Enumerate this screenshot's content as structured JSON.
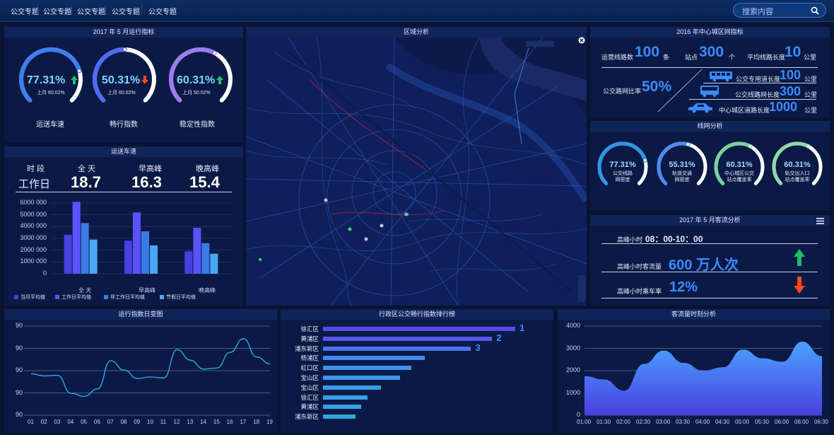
{
  "nav": {
    "items": [
      "公交专题",
      "公交专题",
      "公交专题",
      "公交专题",
      "公交专题"
    ]
  },
  "search": {
    "placeholder": "搜索内容"
  },
  "panel_ops": {
    "title": "2017 年 5 月运行指标",
    "gauges": [
      {
        "value": "77.31%",
        "trend": "up",
        "prev": "上月 60.02%",
        "label": "运送车速",
        "pct": 0.7731
      },
      {
        "value": "50.31%",
        "trend": "down",
        "prev": "上月 60.02%",
        "label": "畅行指数",
        "pct": 0.5031
      },
      {
        "value": "60.31%",
        "trend": "up",
        "prev": "上月 50.02%",
        "label": "稳定性指数",
        "pct": 0.6031
      }
    ]
  },
  "panel_speed": {
    "title": "运送车速",
    "col_headers": [
      "时  段",
      "全  天",
      "早高峰",
      "晚高峰"
    ],
    "row_label": "工作日",
    "row_values": [
      "18.7",
      "16.3",
      "15.4"
    ],
    "y_ticks": [
      "6000 000",
      "5000 000",
      "4000 000",
      "3000 000",
      "2000 000",
      "1000 000",
      "0"
    ],
    "legend": [
      "当月平均值",
      "工作日平均值",
      "非工作日平均值",
      "节假日平均值"
    ]
  },
  "chart_data": [
    {
      "type": "bar",
      "title": "运送车速",
      "categories": [
        "全  天",
        "早高峰",
        "晚高峰"
      ],
      "series": [
        {
          "name": "当月平均值",
          "values": [
            3300000,
            2800000,
            1900000
          ]
        },
        {
          "name": "工作日平均值",
          "values": [
            6100000,
            5200000,
            3900000
          ]
        },
        {
          "name": "非工作日平均值",
          "values": [
            4300000,
            3600000,
            2600000
          ]
        },
        {
          "name": "节假日平均值",
          "values": [
            2900000,
            2400000,
            1700000
          ]
        }
      ],
      "ylim": [
        0,
        6500000
      ],
      "colors": [
        "#4a3fe0",
        "#5a52ff",
        "#3b7be8",
        "#49a8f5"
      ]
    },
    {
      "type": "line",
      "title": "运行指数日变图",
      "categories": [
        "01",
        "02",
        "03",
        "04",
        "05",
        "06",
        "07",
        "08",
        "09",
        "10",
        "11",
        "12",
        "13",
        "14",
        "15",
        "16",
        "17",
        "18",
        "19"
      ],
      "values": [
        85.9,
        85.5,
        85.6,
        82.2,
        81.6,
        83.0,
        88.4,
        86.6,
        85.0,
        85.3,
        85.1,
        90.5,
        88.5,
        86.8,
        87.0,
        90.0,
        92.6,
        89.1,
        87.8
      ],
      "y_tick_labels": [
        "90",
        "90",
        "90",
        "90",
        "90"
      ],
      "ylim": [
        78,
        95
      ]
    },
    {
      "type": "bar",
      "title": "行政区公交畅行指数排行榜",
      "orientation": "horizontal",
      "categories": [
        "徐汇区",
        "黄浦区",
        "浦东新区",
        "杨浦区",
        "虹口区",
        "宝山区",
        "宝山区",
        "徐汇区",
        "黄浦区",
        "浦东新区"
      ],
      "values": [
        100,
        88,
        77,
        53,
        46,
        40,
        30,
        23,
        20,
        17
      ],
      "ranks": [
        "1",
        "2",
        "3"
      ]
    },
    {
      "type": "area",
      "title": "客流量时刻分析",
      "categories": [
        "01:00",
        "01:30",
        "02:00",
        "02:30",
        "03:00",
        "03:30",
        "04:00",
        "04:30",
        "05:00",
        "05:30",
        "06:00",
        "06:00",
        "06:30"
      ],
      "values": [
        1750,
        1600,
        1100,
        2300,
        2900,
        2350,
        2000,
        2150,
        2950,
        2550,
        2400,
        3300,
        2650
      ],
      "ylim": [
        0,
        4000
      ],
      "y_ticks": [
        "4000",
        "3000",
        "2000",
        "1000",
        "0"
      ]
    }
  ],
  "panel_map": {
    "title": "区域分析"
  },
  "panel_network": {
    "title": "2016 年中心城区网指标",
    "items": [
      {
        "label": "运营线路数",
        "value": "100",
        "unit": "条"
      },
      {
        "label": "站点",
        "value": "300",
        "unit": "个"
      },
      {
        "label": "平均线路长度",
        "value": "10",
        "unit": "公里"
      }
    ],
    "ratio_label": "公交路网比率",
    "ratio_value": "50%",
    "lengths": [
      {
        "label": "公交专用道长度",
        "value": "100",
        "unit": "公里",
        "icon": "bus-icon"
      },
      {
        "label": "公交线路网长度",
        "value": "300",
        "unit": "公里",
        "icon": "bus-icon"
      },
      {
        "label": "中心城区道路长度",
        "value": "1000",
        "unit": "公里",
        "icon": "car-icon"
      }
    ]
  },
  "panel_lines": {
    "title": "线网分析",
    "gauges": [
      {
        "value": "77.31%",
        "label1": "公交线路",
        "label2": "网密度",
        "pct": 0.7731
      },
      {
        "value": "55.31%",
        "label1": "轨道交通",
        "label2": "网密度",
        "pct": 0.5531
      },
      {
        "value": "60.31%",
        "label1": "中心城区公交",
        "label2": "站点覆盖率",
        "pct": 0.6031
      },
      {
        "value": "60.31%",
        "label1": "轨交出入口",
        "label2": "站点覆盖率",
        "pct": 0.6031
      }
    ]
  },
  "panel_flow": {
    "title": "2017 年 5 月客流分析",
    "peak_hour_label": "高峰小时",
    "peak_hour_value": "08：00-10：00",
    "peak_flow_label": "高峰小时客流量",
    "peak_flow_value": "600 万人次",
    "peak_rate_label": "高峰小时乘车率",
    "peak_rate_value": "12%"
  },
  "panel_daily": {
    "title": "运行指数日变图"
  },
  "panel_rank": {
    "title": "行政区公交畅行指数排行榜"
  },
  "panel_hourly": {
    "title": "客流量时刻分析"
  },
  "colors": {
    "accent": "#3d8bff",
    "up": "#1fbf6a",
    "down": "#ff4a1a"
  }
}
